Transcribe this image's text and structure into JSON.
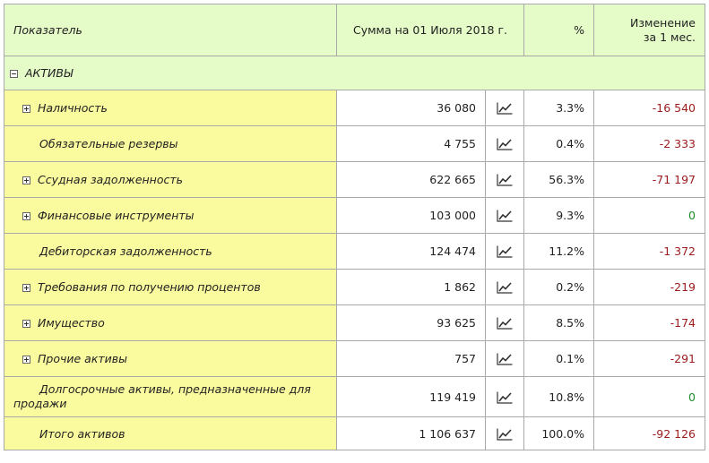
{
  "header": {
    "col_name": "Показатель",
    "col_sum": "Сумма на 01 Июля 2018 г.",
    "col_pct": "%",
    "col_change_line1": "Изменение",
    "col_change_line2": "за 1 мес."
  },
  "section": {
    "label": "АКТИВЫ"
  },
  "rows": [
    {
      "name": "Наличность",
      "sum": "36 080",
      "pct": "3.3%",
      "change": "-16 540"
    },
    {
      "name": "Обязательные резервы",
      "sum": "4 755",
      "pct": "0.4%",
      "change": "-2 333"
    },
    {
      "name": "Ссудная задолженность",
      "sum": "622 665",
      "pct": "56.3%",
      "change": "-71 197"
    },
    {
      "name": "Финансовые инструменты",
      "sum": "103 000",
      "pct": "9.3%",
      "change": "0"
    },
    {
      "name": "Дебиторская задолженность",
      "sum": "124 474",
      "pct": "11.2%",
      "change": "-1 372"
    },
    {
      "name": "Требования по получению процентов",
      "sum": "1 862",
      "pct": "0.2%",
      "change": "-219"
    },
    {
      "name": "Имущество",
      "sum": "93 625",
      "pct": "8.5%",
      "change": "-174"
    },
    {
      "name": "Прочие активы",
      "sum": "757",
      "pct": "0.1%",
      "change": "-291"
    },
    {
      "name": "Долгосрочные активы, предназначенные для продажи",
      "sum": "119 419",
      "pct": "10.8%",
      "change": "0"
    },
    {
      "name": "Итого активов",
      "sum": "1 106 637",
      "pct": "100.0%",
      "change": "-92 126"
    }
  ],
  "icons": {
    "expand": "plus-toggle-icon",
    "collapse": "minus-toggle-icon",
    "chart": "trend-chart-icon"
  },
  "colors": {
    "header_bg": "#e5fbc8",
    "name_bg": "#fafa9e",
    "negative": "#9b1b1b",
    "zero": "#1e8c2a",
    "border": "#a9a9a9"
  }
}
